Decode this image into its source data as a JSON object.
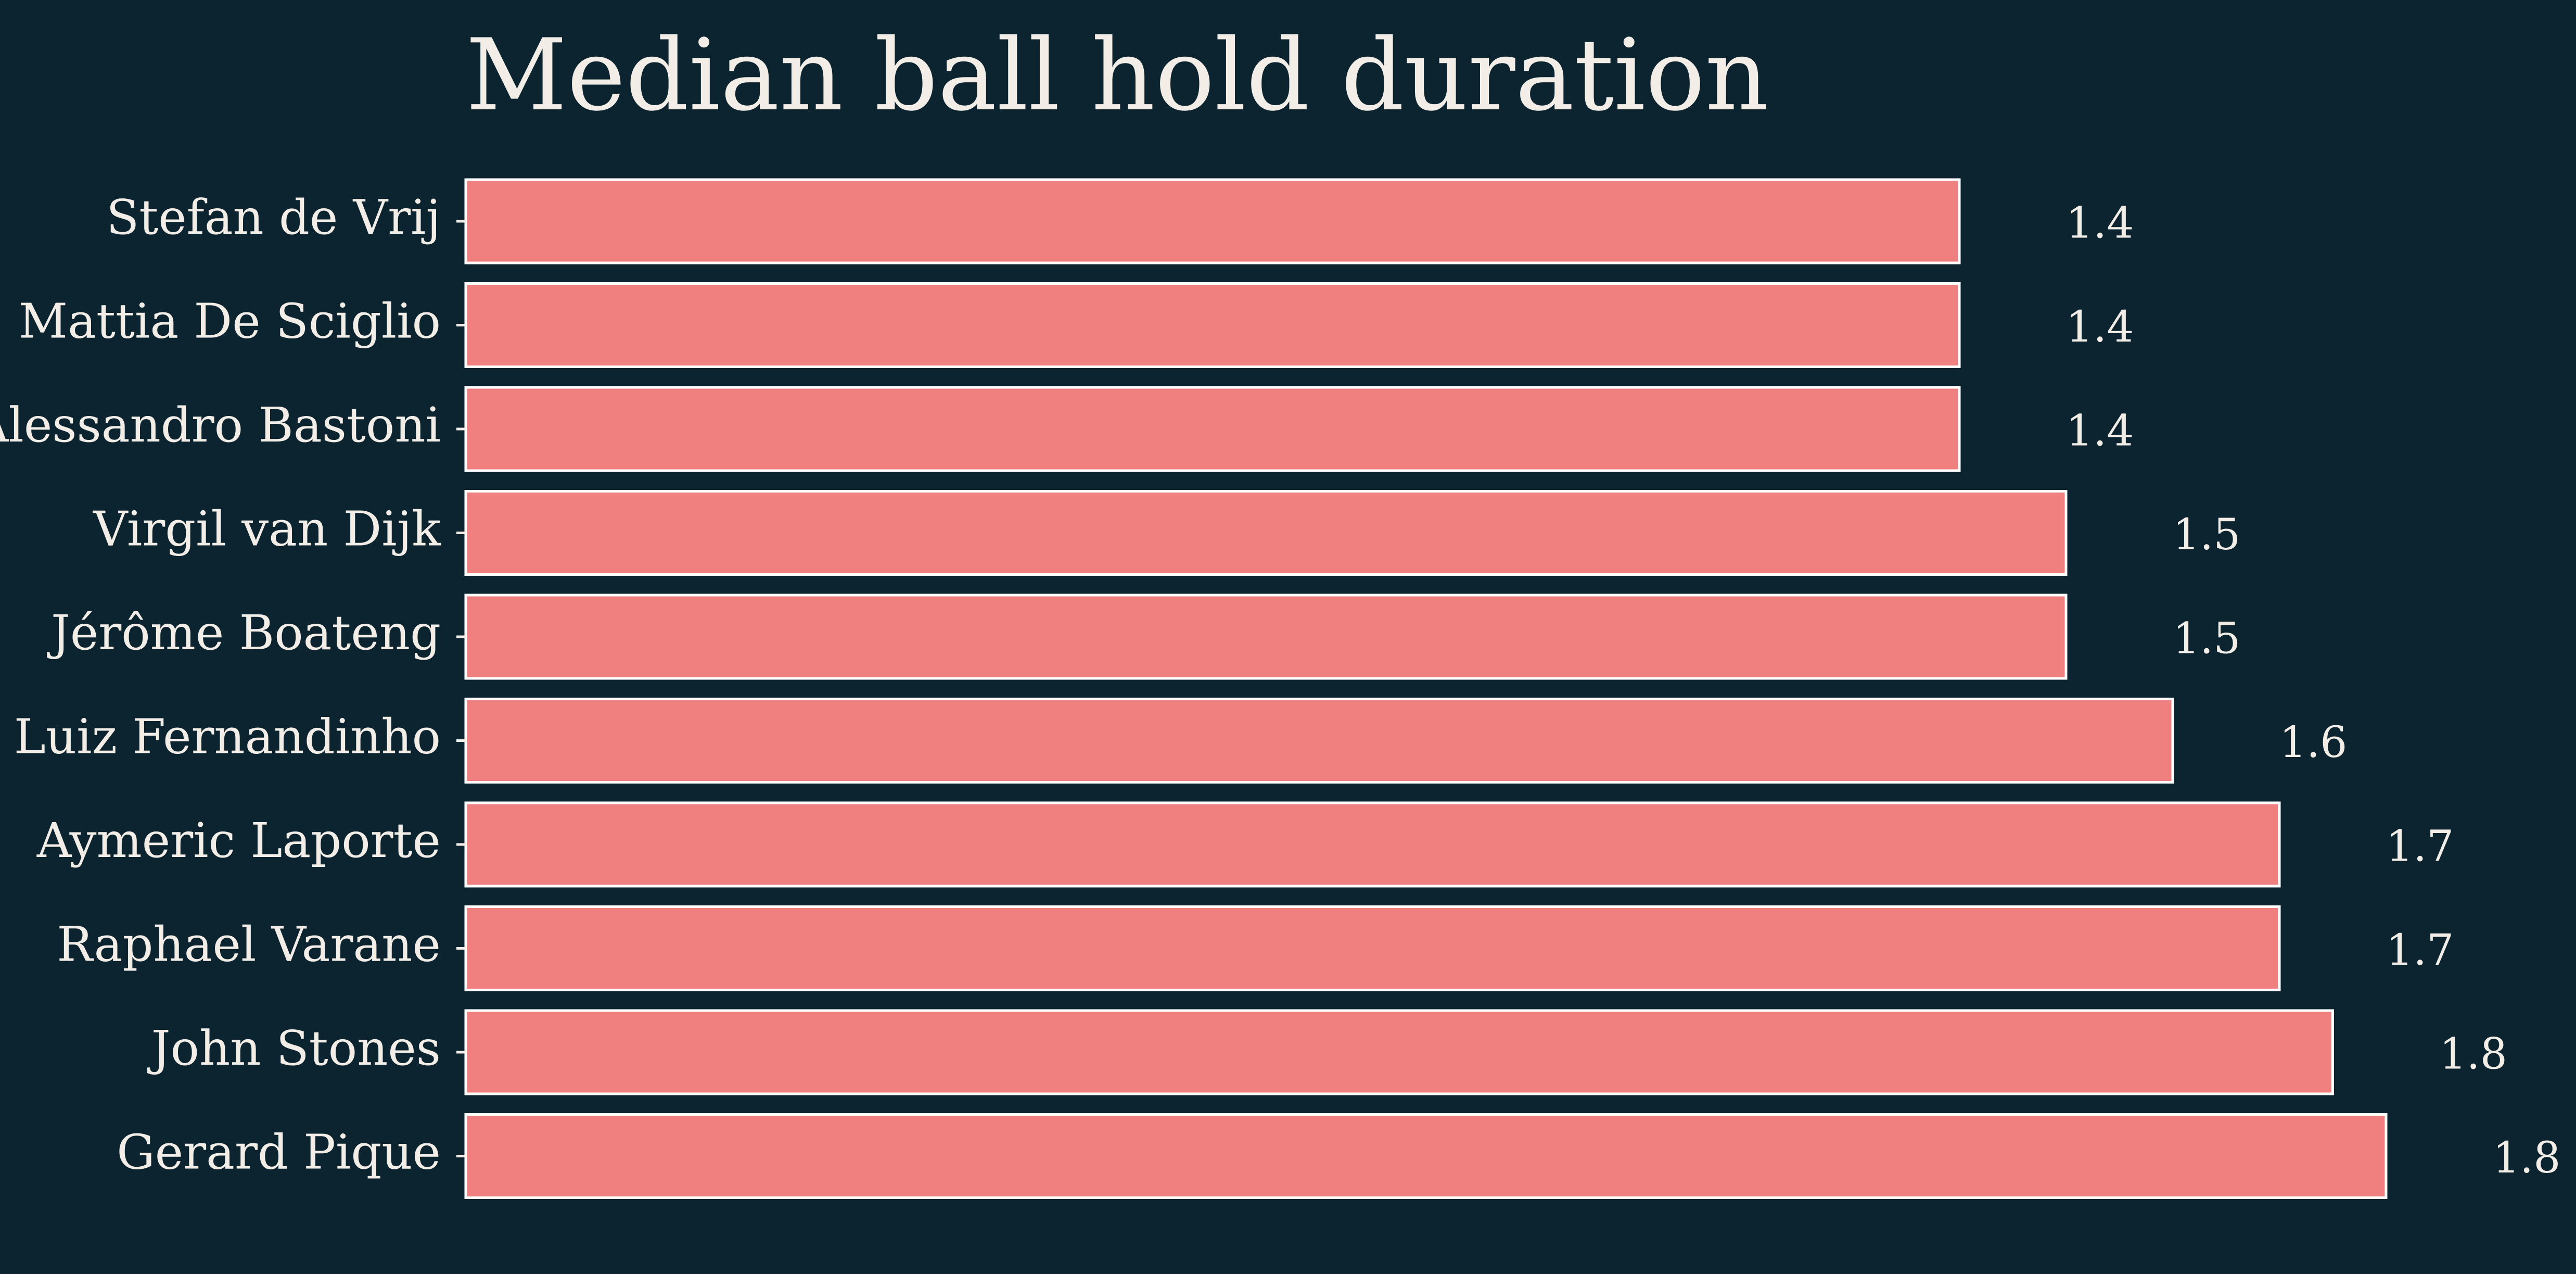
{
  "chart_data": {
    "type": "bar",
    "orientation": "horizontal",
    "title": "Median ball hold duration",
    "categories": [
      "Stefan de Vrij",
      "Mattia De Sciglio",
      "Alessandro Bastoni",
      "Virgil van Dijk",
      "Jérôme Boateng",
      "Luiz Fernandinho",
      "Aymeric Laporte",
      "Raphael Varane",
      "John Stones",
      "Gerard Pique"
    ],
    "values": [
      1.4,
      1.4,
      1.4,
      1.5,
      1.5,
      1.6,
      1.7,
      1.7,
      1.75,
      1.8
    ],
    "data_labels": [
      "1.4",
      "1.4",
      "1.4",
      "1.5",
      "1.5",
      "1.6",
      "1.7",
      "1.7",
      "1.8",
      "1.8"
    ],
    "xlim": [
      0,
      1.8
    ],
    "grid": false,
    "colors": {
      "background": "#0b2430",
      "bar_fill": "#f08080",
      "bar_edge": "#ffffff",
      "text": "#f2ede6"
    }
  }
}
